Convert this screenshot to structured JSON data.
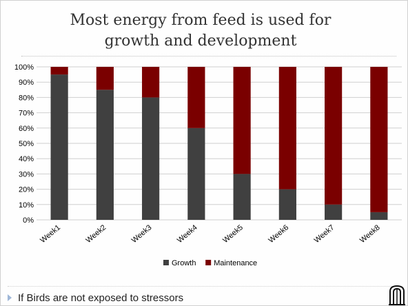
{
  "slide": {
    "title_line1": "Most energy from feed is used for",
    "title_line2": "growth and development",
    "bullet": "If Birds are not exposed to stressors"
  },
  "logo_icon": "university-arch-logo-icon",
  "chart_data": {
    "type": "bar",
    "stacked": true,
    "percent": true,
    "categories": [
      "Week1",
      "Week2",
      "Week3",
      "Week4",
      "Week5",
      "Week6",
      "Week7",
      "Week8"
    ],
    "series": [
      {
        "name": "Growth",
        "color": "#404040",
        "values": [
          95,
          85,
          80,
          60,
          30,
          20,
          10,
          5
        ]
      },
      {
        "name": "Maintenance",
        "color": "#7a0000",
        "values": [
          5,
          15,
          20,
          40,
          70,
          80,
          90,
          95
        ]
      }
    ],
    "ylim": [
      0,
      100
    ],
    "yticks": [
      "0%",
      "10%",
      "20%",
      "30%",
      "40%",
      "50%",
      "60%",
      "70%",
      "80%",
      "90%",
      "100%"
    ],
    "grid": true,
    "legend": "bottom"
  }
}
